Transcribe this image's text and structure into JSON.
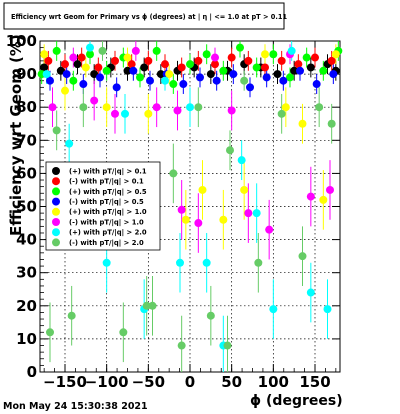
{
  "chart_data": {
    "type": "scatter",
    "title": "Efficiency wrt Geom for Primary vs ϕ (degrees) at | η | <= 1.0 at pT > 0.11",
    "xlabel": "ϕ (degrees)",
    "ylabel": "Efficiency wrt Geom (%)",
    "xlim": [
      -180,
      180
    ],
    "ylim": [
      0,
      100
    ],
    "x_ticks": [
      -150,
      -100,
      -50,
      0,
      50,
      100,
      150
    ],
    "x_tick_labels": [
      "−150",
      "−100",
      "−50",
      "0",
      "50",
      "100",
      "150"
    ],
    "y_ticks": [
      0,
      10,
      20,
      30,
      40,
      50,
      60,
      70,
      80,
      90,
      100
    ],
    "y_tick_labels": [
      "0",
      "10",
      "20",
      "30",
      "40",
      "50",
      "60",
      "70",
      "80",
      "90",
      "100"
    ],
    "grid": true,
    "legend_position": "left-middle",
    "timestamp": "Mon May 24 15:30:38 2021",
    "series": [
      {
        "name": "(+) with pT/|q| > 0.1",
        "color": "#000000",
        "x": [
          -175,
          -155,
          -135,
          -115,
          -95,
          -75,
          -55,
          -35,
          -15,
          5,
          25,
          45,
          65,
          85,
          105,
          125,
          145,
          165,
          175
        ],
        "y": [
          92,
          91,
          93,
          90,
          92,
          91,
          92,
          90,
          91,
          92,
          90,
          91,
          93,
          92,
          90,
          91,
          92,
          93,
          91
        ]
      },
      {
        "name": "(-) with pT/|q| > 0.1",
        "color": "#ff0000",
        "x": [
          -170,
          -150,
          -130,
          -110,
          -90,
          -70,
          -50,
          -30,
          -10,
          10,
          30,
          50,
          70,
          90,
          110,
          130,
          150,
          170
        ],
        "y": [
          94,
          93,
          95,
          92,
          94,
          93,
          94,
          93,
          92,
          94,
          93,
          95,
          94,
          92,
          94,
          93,
          95,
          94
        ]
      },
      {
        "name": "(+) with pT/|q| > 0.5",
        "color": "#00ff00",
        "x": [
          -178,
          -160,
          -140,
          -120,
          -100,
          -80,
          -60,
          -40,
          -20,
          0,
          20,
          40,
          60,
          80,
          100,
          120,
          140,
          160,
          178
        ],
        "y": [
          90,
          97,
          88,
          96,
          91,
          95,
          89,
          97,
          87,
          93,
          96,
          91,
          98,
          92,
          96,
          89,
          95,
          91,
          97
        ]
      },
      {
        "name": "(-) with pT/|q| > 0.5",
        "color": "#0000ff",
        "x": [
          -168,
          -148,
          -128,
          -108,
          -88,
          -68,
          -48,
          -28,
          -8,
          12,
          32,
          52,
          72,
          92,
          112,
          132,
          152,
          172
        ],
        "y": [
          88,
          90,
          87,
          89,
          86,
          91,
          88,
          90,
          87,
          89,
          88,
          90,
          86,
          89,
          88,
          91,
          87,
          90
        ]
      },
      {
        "name": "(+) with pT/|q| > 1.0",
        "color": "#ffff00",
        "x": [
          -175,
          -150,
          -125,
          -100,
          -75,
          -50,
          -25,
          -5,
          15,
          40,
          65,
          90,
          115,
          135,
          160,
          175
        ],
        "y": [
          96,
          85,
          92,
          80,
          95,
          78,
          90,
          46,
          55,
          46,
          55,
          96,
          80,
          75,
          52,
          96
        ]
      },
      {
        "name": "(-) with pT/|q| > 1.0",
        "color": "#ff00ff",
        "x": [
          -165,
          -140,
          -115,
          -90,
          -65,
          -40,
          -15,
          -10,
          10,
          30,
          50,
          70,
          95,
          120,
          145,
          168
        ],
        "y": [
          80,
          95,
          82,
          78,
          97,
          80,
          79,
          49,
          45,
          95,
          79,
          48,
          43,
          96,
          53,
          55
        ]
      },
      {
        "name": "(+) with pT/|q| > 2.0",
        "color": "#00ffff",
        "x": [
          -172,
          -145,
          -120,
          -100,
          -78,
          -55,
          -30,
          -12,
          0,
          20,
          40,
          62,
          80,
          100,
          122,
          145,
          165
        ],
        "y": [
          90,
          69,
          98,
          33,
          78,
          19,
          88,
          33,
          80,
          33,
          8,
          64,
          48,
          19,
          97,
          24,
          19
        ]
      },
      {
        "name": "(-) with pT/|q| > 2.0",
        "color": "#66cc66",
        "x": [
          -168,
          -160,
          -142,
          -128,
          -105,
          -80,
          -52,
          -45,
          -20,
          -10,
          10,
          25,
          45,
          48,
          65,
          82,
          110,
          135,
          155,
          170
        ],
        "y": [
          12,
          73,
          17,
          80,
          97,
          12,
          20,
          20,
          60,
          8,
          80,
          17,
          8,
          67,
          88,
          33,
          78,
          35,
          80,
          75
        ]
      }
    ]
  }
}
